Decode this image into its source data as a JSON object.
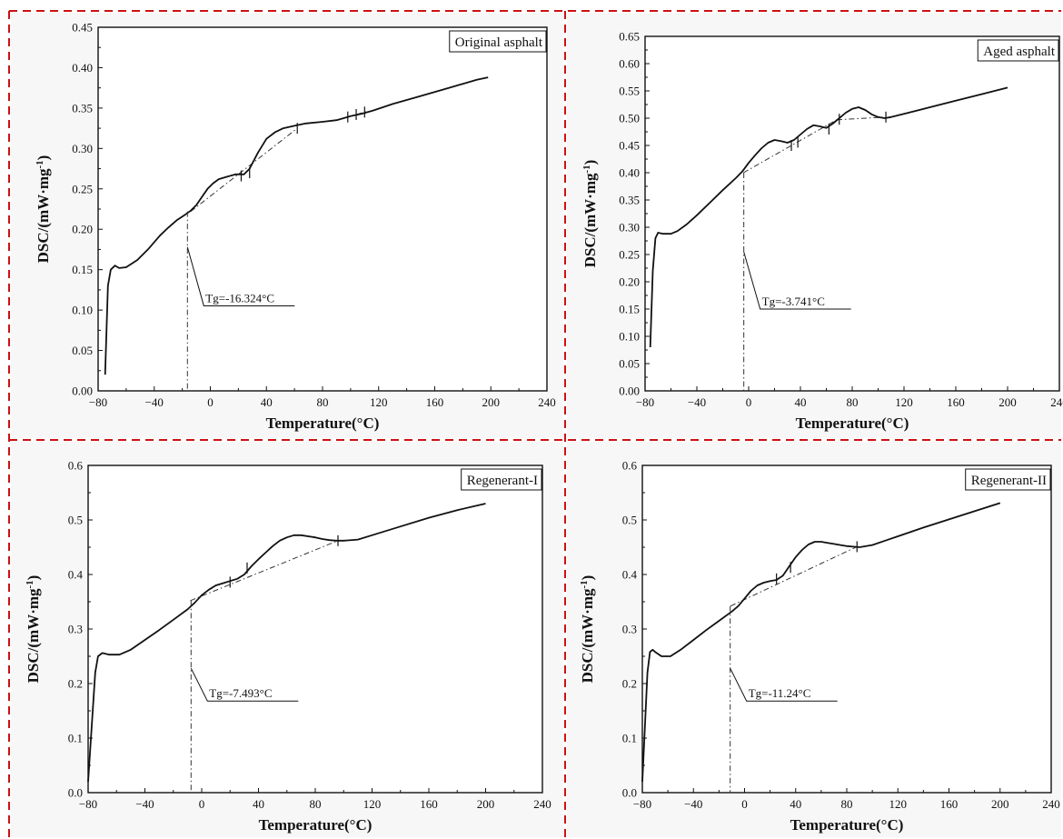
{
  "colors": {
    "curve": "#111111",
    "tangent": "#333333",
    "divider": "#cc1111",
    "panel_bg": "#f7f7f7",
    "axis": "#111111"
  },
  "chart_data": [
    {
      "type": "line",
      "title": "",
      "legend": "Original asphalt",
      "legend_position": "top-right",
      "xlabel": "Temperature(°C)",
      "ylabel_parts": [
        "DSC/(mW·mg",
        "-1",
        ")"
      ],
      "xlim": [
        -80,
        240
      ],
      "ylim": [
        0,
        0.45
      ],
      "xticks": [
        -80,
        -40,
        0,
        40,
        80,
        120,
        160,
        200,
        240
      ],
      "yticks": [
        0.0,
        0.05,
        0.1,
        0.15,
        0.2,
        0.25,
        0.3,
        0.35,
        0.4,
        0.45
      ],
      "y_decimals": 2,
      "grid": false,
      "series": [
        {
          "x": [
            -75,
            -73,
            -71,
            -68,
            -65,
            -60,
            -52,
            -44,
            -36,
            -30,
            -24,
            -18,
            -14,
            -10,
            -6,
            -2,
            2,
            6,
            12,
            18,
            24,
            28,
            34,
            40,
            46,
            52,
            60,
            68,
            80,
            90,
            100,
            108,
            116,
            130,
            150,
            170,
            190,
            198
          ],
          "y": [
            0.02,
            0.13,
            0.15,
            0.155,
            0.152,
            0.153,
            0.162,
            0.176,
            0.192,
            0.202,
            0.211,
            0.218,
            0.223,
            0.23,
            0.24,
            0.25,
            0.257,
            0.262,
            0.265,
            0.268,
            0.268,
            0.275,
            0.295,
            0.312,
            0.32,
            0.325,
            0.328,
            0.331,
            0.333,
            0.335,
            0.34,
            0.343,
            0.347,
            0.355,
            0.365,
            0.375,
            0.385,
            0.388
          ]
        }
      ],
      "tangents": [
        {
          "x": [
            -14,
            62
          ],
          "y": [
            0.222,
            0.325
          ]
        },
        {
          "x": [
            96,
            112
          ],
          "y": [
            0.338,
            0.346
          ]
        }
      ],
      "markers": [
        {
          "x": 22,
          "y": 0.266
        },
        {
          "x": 28,
          "y": 0.27
        },
        {
          "x": 62,
          "y": 0.325
        },
        {
          "x": 98,
          "y": 0.339
        },
        {
          "x": 104,
          "y": 0.342
        },
        {
          "x": 110,
          "y": 0.345
        }
      ],
      "tg": {
        "x": -16.324,
        "y": 0.222,
        "label": "Tg=-16.324°C",
        "leader_y": 0.178,
        "text_y": 0.112
      }
    },
    {
      "type": "line",
      "title": "",
      "legend": "Aged asphalt",
      "legend_position": "top-right",
      "xlabel": "Temperature(°C)",
      "ylabel_parts": [
        "DSC/(mW·mg",
        "-1",
        ")"
      ],
      "xlim": [
        -80,
        240
      ],
      "ylim": [
        0,
        0.65
      ],
      "xticks": [
        -80,
        -40,
        0,
        40,
        80,
        120,
        160,
        200,
        240
      ],
      "yticks": [
        0.0,
        0.05,
        0.1,
        0.15,
        0.2,
        0.25,
        0.3,
        0.35,
        0.4,
        0.45,
        0.5,
        0.55,
        0.6,
        0.65
      ],
      "y_decimals": 2,
      "grid": false,
      "series": [
        {
          "x": [
            -76,
            -74,
            -72,
            -70,
            -66,
            -60,
            -55,
            -48,
            -40,
            -30,
            -20,
            -10,
            -5,
            0,
            5,
            10,
            15,
            20,
            25,
            30,
            35,
            40,
            45,
            50,
            55,
            60,
            65,
            70,
            75,
            80,
            85,
            90,
            95,
            100,
            105,
            110,
            120,
            140,
            160,
            180,
            200
          ],
          "y": [
            0.08,
            0.22,
            0.28,
            0.29,
            0.288,
            0.288,
            0.293,
            0.305,
            0.322,
            0.345,
            0.368,
            0.39,
            0.402,
            0.418,
            0.432,
            0.445,
            0.455,
            0.46,
            0.458,
            0.455,
            0.46,
            0.47,
            0.48,
            0.487,
            0.485,
            0.482,
            0.49,
            0.5,
            0.51,
            0.517,
            0.52,
            0.515,
            0.507,
            0.502,
            0.5,
            0.502,
            0.508,
            0.52,
            0.532,
            0.544,
            0.556
          ]
        }
      ],
      "tangents": [
        {
          "x": [
            -4,
            68
          ],
          "y": [
            0.4,
            0.497
          ]
        },
        {
          "x": [
            68,
            106
          ],
          "y": [
            0.497,
            0.502
          ]
        }
      ],
      "markers": [
        {
          "x": 33,
          "y": 0.45
        },
        {
          "x": 38,
          "y": 0.456
        },
        {
          "x": 62,
          "y": 0.48
        },
        {
          "x": 70,
          "y": 0.498
        },
        {
          "x": 106,
          "y": 0.502
        }
      ],
      "tg": {
        "x": -3.741,
        "y": 0.4,
        "label": "Tg=-3.741°C",
        "leader_y": 0.255,
        "text_y": 0.16
      }
    },
    {
      "type": "line",
      "title": "",
      "legend": "Regenerant-I",
      "legend_position": "top-right",
      "xlabel": "Temperature(°C)",
      "ylabel_parts": [
        "DSC/(mW·mg",
        "-1",
        ")"
      ],
      "xlim": [
        -80,
        240
      ],
      "ylim": [
        0,
        0.6
      ],
      "xticks": [
        -80,
        -40,
        0,
        40,
        80,
        120,
        160,
        200,
        240
      ],
      "yticks": [
        0.0,
        0.1,
        0.2,
        0.3,
        0.4,
        0.5,
        0.6
      ],
      "y_decimals": 1,
      "grid": false,
      "series": [
        {
          "x": [
            -80,
            -78,
            -75,
            -73,
            -70,
            -65,
            -58,
            -50,
            -40,
            -30,
            -20,
            -10,
            -5,
            0,
            5,
            10,
            15,
            20,
            25,
            30,
            35,
            40,
            45,
            50,
            55,
            60,
            65,
            70,
            75,
            80,
            85,
            90,
            95,
            100,
            110,
            120,
            140,
            160,
            180,
            200
          ],
          "y": [
            0.02,
            0.1,
            0.22,
            0.25,
            0.256,
            0.253,
            0.253,
            0.262,
            0.28,
            0.298,
            0.317,
            0.336,
            0.348,
            0.362,
            0.372,
            0.38,
            0.384,
            0.388,
            0.392,
            0.4,
            0.415,
            0.428,
            0.44,
            0.452,
            0.462,
            0.468,
            0.472,
            0.472,
            0.47,
            0.468,
            0.465,
            0.463,
            0.462,
            0.462,
            0.464,
            0.472,
            0.488,
            0.504,
            0.518,
            0.53
          ]
        }
      ],
      "tangents": [
        {
          "x": [
            -8,
            96
          ],
          "y": [
            0.352,
            0.462
          ]
        }
      ],
      "markers": [
        {
          "x": 20,
          "y": 0.386
        },
        {
          "x": 32,
          "y": 0.412
        },
        {
          "x": 96,
          "y": 0.462
        }
      ],
      "tg": {
        "x": -7.493,
        "y": 0.352,
        "label": "Tg=-7.493°C",
        "leader_y": 0.228,
        "text_y": 0.178
      }
    },
    {
      "type": "line",
      "title": "",
      "legend": "Regenerant-II",
      "legend_position": "top-right",
      "xlabel": "Temperature(°C)",
      "ylabel_parts": [
        "DSC/(mW·mg",
        "-1",
        ")"
      ],
      "xlim": [
        -80,
        240
      ],
      "ylim": [
        0,
        0.6
      ],
      "xticks": [
        -80,
        -40,
        0,
        40,
        80,
        120,
        160,
        200,
        240
      ],
      "yticks": [
        0.0,
        0.1,
        0.2,
        0.3,
        0.4,
        0.5,
        0.6
      ],
      "y_decimals": 1,
      "grid": false,
      "series": [
        {
          "x": [
            -80,
            -78,
            -76,
            -74,
            -72,
            -70,
            -65,
            -58,
            -50,
            -40,
            -30,
            -20,
            -10,
            -5,
            0,
            5,
            10,
            15,
            20,
            25,
            30,
            35,
            40,
            45,
            50,
            55,
            60,
            65,
            70,
            75,
            80,
            85,
            90,
            100,
            110,
            120,
            140,
            160,
            180,
            200
          ],
          "y": [
            0.02,
            0.12,
            0.22,
            0.258,
            0.262,
            0.258,
            0.25,
            0.25,
            0.262,
            0.28,
            0.298,
            0.315,
            0.332,
            0.342,
            0.356,
            0.37,
            0.38,
            0.385,
            0.388,
            0.39,
            0.398,
            0.415,
            0.432,
            0.445,
            0.455,
            0.46,
            0.46,
            0.458,
            0.456,
            0.454,
            0.452,
            0.451,
            0.45,
            0.454,
            0.462,
            0.47,
            0.486,
            0.501,
            0.516,
            0.531
          ]
        }
      ],
      "tangents": [
        {
          "x": [
            -11,
            88
          ],
          "y": [
            0.342,
            0.451
          ]
        }
      ],
      "markers": [
        {
          "x": 25,
          "y": 0.392
        },
        {
          "x": 36,
          "y": 0.413
        },
        {
          "x": 88,
          "y": 0.451
        }
      ],
      "tg": {
        "x": -11.24,
        "y": 0.342,
        "label": "Tg=-11.24°C",
        "leader_y": 0.228,
        "text_y": 0.178
      }
    }
  ]
}
